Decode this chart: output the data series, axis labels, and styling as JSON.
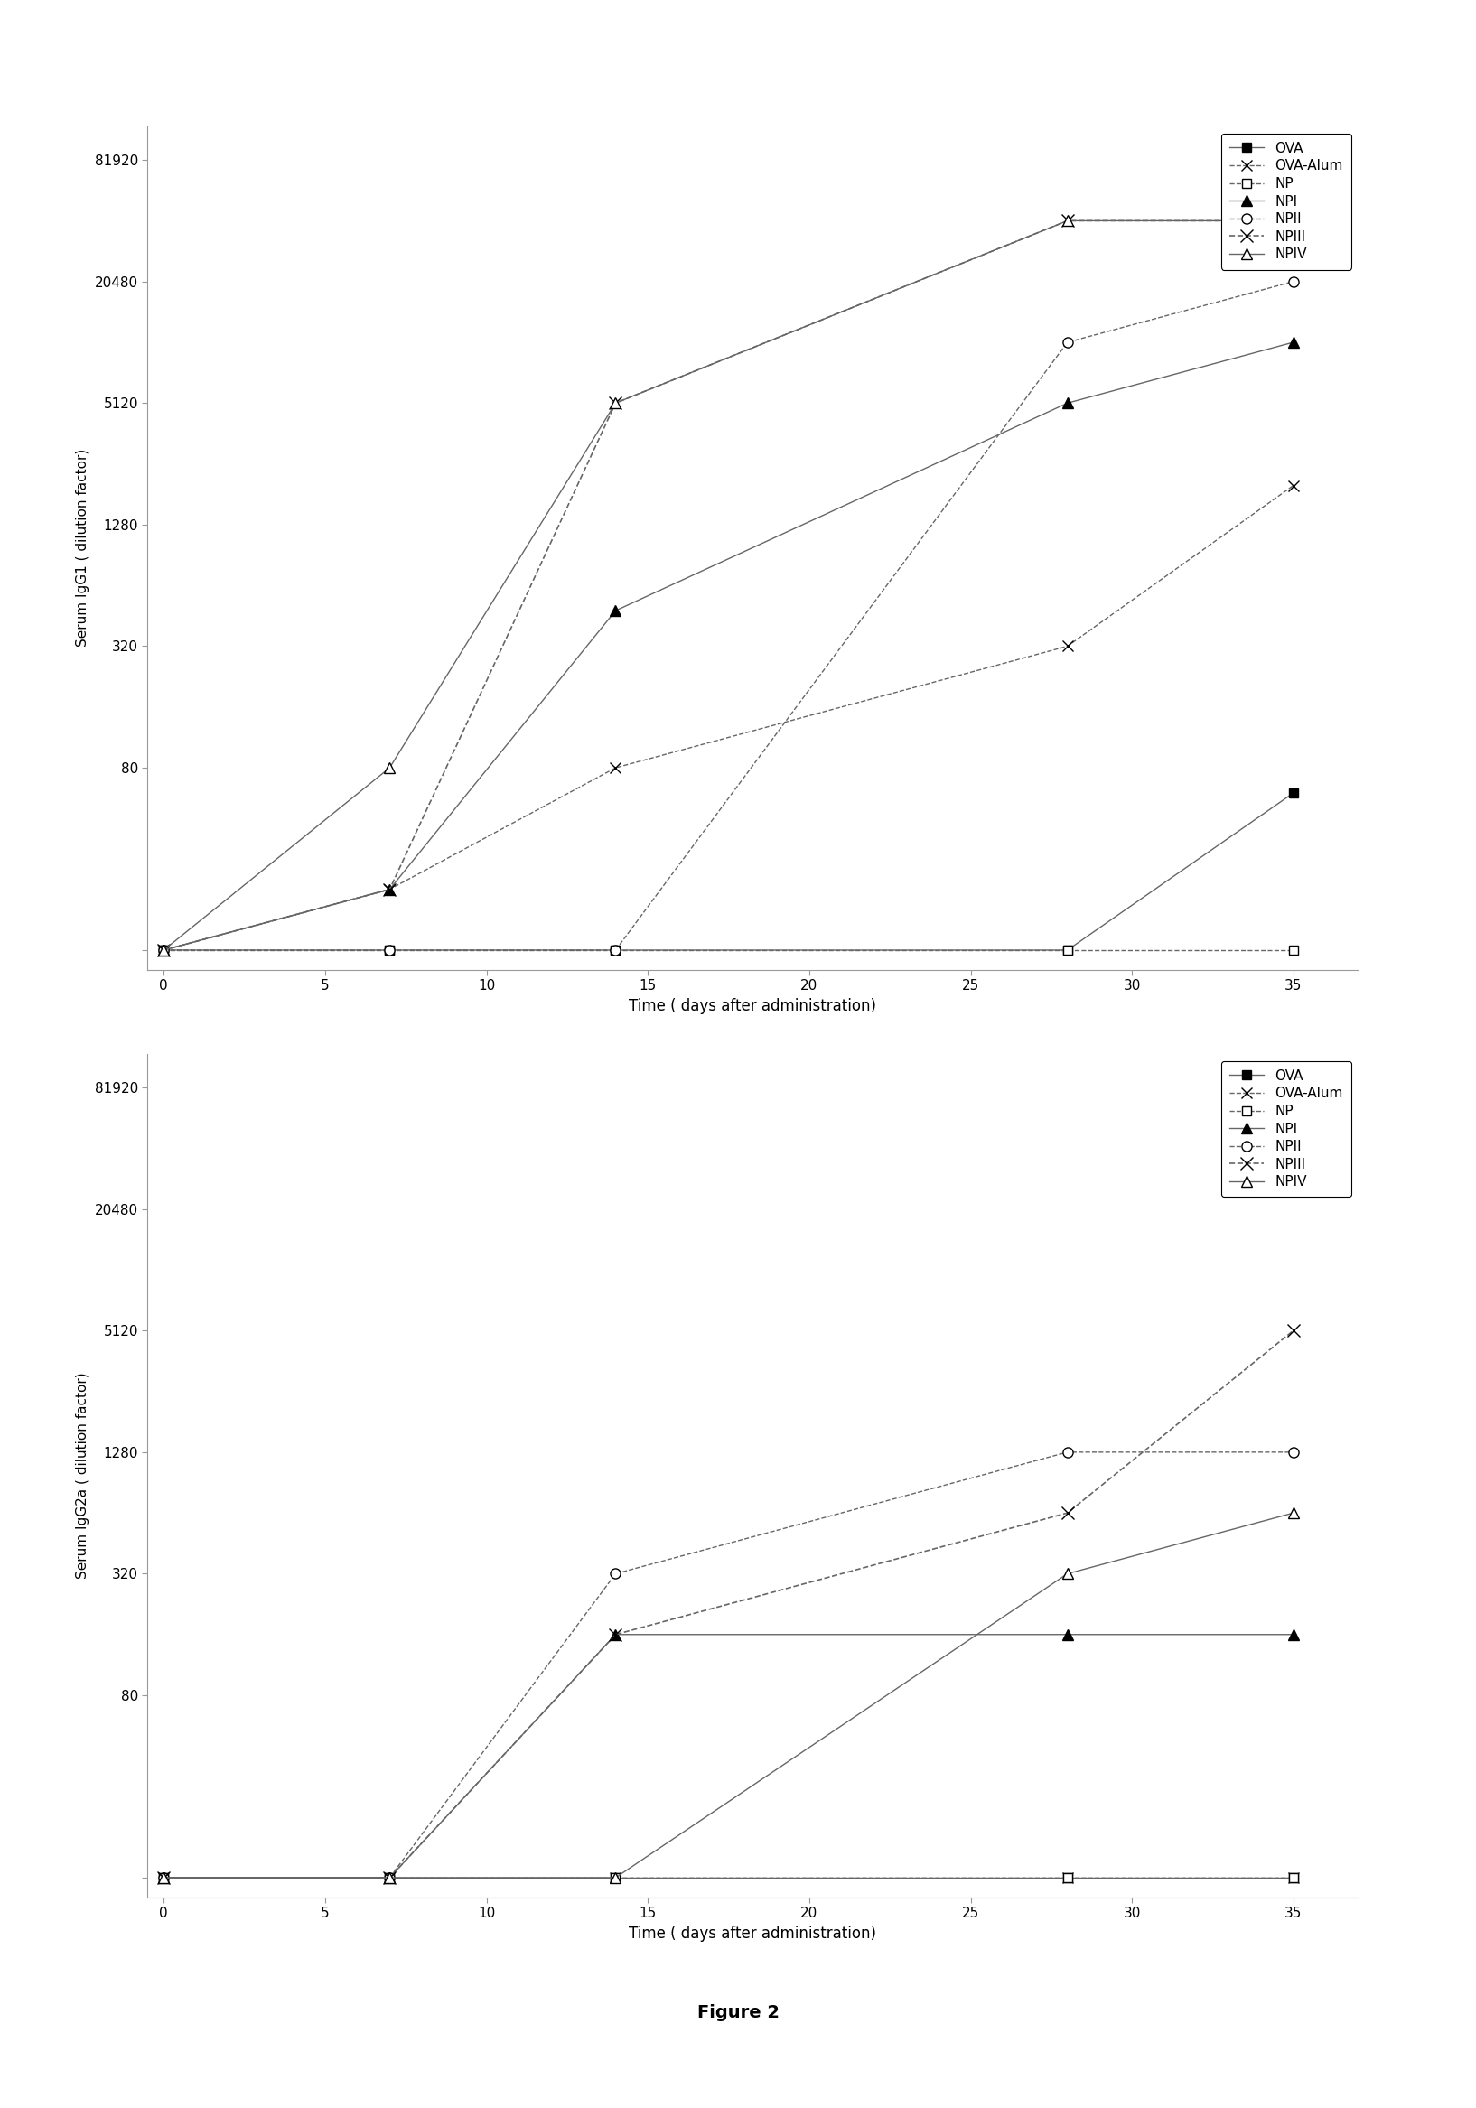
{
  "top_chart": {
    "ylabel": "Serum IgG1 ( dilution factor)",
    "xlabel": "Time ( days after administration)",
    "series": [
      {
        "label": "OVA",
        "x": [
          0,
          7,
          14,
          28,
          35
        ],
        "y": [
          10,
          10,
          10,
          10,
          60
        ],
        "marker": "s",
        "mfc": "black",
        "mec": "black",
        "ls": "-",
        "lw": 1.0,
        "ms": 7
      },
      {
        "label": "OVA-Alum",
        "x": [
          0,
          7,
          14,
          28,
          35
        ],
        "y": [
          10,
          20,
          80,
          320,
          2000
        ],
        "marker": "x",
        "mfc": "black",
        "mec": "black",
        "ls": "--",
        "lw": 1.0,
        "ms": 8
      },
      {
        "label": "NP",
        "x": [
          0,
          7,
          14,
          28,
          35
        ],
        "y": [
          10,
          10,
          10,
          10,
          10
        ],
        "marker": "s",
        "mfc": "white",
        "mec": "black",
        "ls": "--",
        "lw": 1.0,
        "ms": 7
      },
      {
        "label": "NPI",
        "x": [
          0,
          7,
          14,
          28,
          35
        ],
        "y": [
          10,
          20,
          480,
          5120,
          10240
        ],
        "marker": "^",
        "mfc": "black",
        "mec": "black",
        "ls": "-",
        "lw": 1.0,
        "ms": 8
      },
      {
        "label": "NPII",
        "x": [
          0,
          7,
          14,
          28,
          35
        ],
        "y": [
          10,
          10,
          10,
          10240,
          20480
        ],
        "marker": "o",
        "mfc": "white",
        "mec": "black",
        "ls": "--",
        "lw": 1.0,
        "ms": 8
      },
      {
        "label": "NPIII",
        "x": [
          0,
          7,
          14,
          28,
          35
        ],
        "y": [
          10,
          20,
          5120,
          40960,
          40960
        ],
        "marker": "x",
        "mfc": "black",
        "mec": "black",
        "ls": "--",
        "lw": 1.2,
        "ms": 10
      },
      {
        "label": "NPIV",
        "x": [
          0,
          7,
          14,
          28,
          35
        ],
        "y": [
          10,
          80,
          5120,
          40960,
          40960
        ],
        "marker": "^",
        "mfc": "white",
        "mec": "black",
        "ls": "-",
        "lw": 1.0,
        "ms": 8
      }
    ],
    "yticks": [
      10,
      80,
      320,
      1280,
      5120,
      20480,
      81920
    ],
    "ytick_labels": [
      "",
      "80",
      "320",
      "1280",
      "5120",
      "20480",
      "81920"
    ],
    "ylim_log": [
      8,
      120000
    ],
    "xticks": [
      0,
      5,
      10,
      15,
      20,
      25,
      30,
      35
    ],
    "xlim": [
      -0.5,
      37
    ]
  },
  "bottom_chart": {
    "ylabel": "Serum IgG2a ( dilution factor)",
    "xlabel": "Time ( days after administration)",
    "series": [
      {
        "label": "OVA",
        "x": [
          0,
          7,
          14,
          28,
          35
        ],
        "y": [
          10,
          10,
          10,
          10,
          10
        ],
        "marker": "s",
        "mfc": "black",
        "mec": "black",
        "ls": "-",
        "lw": 1.0,
        "ms": 7
      },
      {
        "label": "OVA-Alum",
        "x": [
          0,
          7,
          14,
          28,
          35
        ],
        "y": [
          10,
          10,
          10,
          10,
          10
        ],
        "marker": "x",
        "mfc": "black",
        "mec": "black",
        "ls": "--",
        "lw": 1.0,
        "ms": 8
      },
      {
        "label": "NP",
        "x": [
          0,
          7,
          14,
          28,
          35
        ],
        "y": [
          10,
          10,
          10,
          10,
          10
        ],
        "marker": "s",
        "mfc": "white",
        "mec": "black",
        "ls": "--",
        "lw": 1.0,
        "ms": 7
      },
      {
        "label": "NPI",
        "x": [
          0,
          7,
          14,
          28,
          35
        ],
        "y": [
          10,
          10,
          160,
          160,
          160
        ],
        "marker": "^",
        "mfc": "black",
        "mec": "black",
        "ls": "-",
        "lw": 1.0,
        "ms": 8
      },
      {
        "label": "NPII",
        "x": [
          0,
          7,
          14,
          28,
          35
        ],
        "y": [
          10,
          10,
          320,
          1280,
          1280
        ],
        "marker": "o",
        "mfc": "white",
        "mec": "black",
        "ls": "--",
        "lw": 1.0,
        "ms": 8
      },
      {
        "label": "NPIII",
        "x": [
          0,
          7,
          14,
          28,
          35
        ],
        "y": [
          10,
          10,
          160,
          640,
          5120
        ],
        "marker": "x",
        "mfc": "black",
        "mec": "black",
        "ls": "--",
        "lw": 1.2,
        "ms": 10
      },
      {
        "label": "NPIV",
        "x": [
          0,
          7,
          14,
          28,
          35
        ],
        "y": [
          10,
          10,
          10,
          320,
          640
        ],
        "marker": "^",
        "mfc": "white",
        "mec": "black",
        "ls": "-",
        "lw": 1.0,
        "ms": 8
      }
    ],
    "yticks": [
      10,
      80,
      320,
      1280,
      5120,
      20480,
      81920
    ],
    "ytick_labels": [
      "",
      "80",
      "320",
      "1280",
      "5120",
      "20480",
      "81920"
    ],
    "ylim_log": [
      8,
      120000
    ],
    "xticks": [
      0,
      5,
      10,
      15,
      20,
      25,
      30,
      35
    ],
    "xlim": [
      -0.5,
      37
    ]
  },
  "figure_caption": "Figure 2",
  "background_color": "#ffffff",
  "line_color": "#666666"
}
